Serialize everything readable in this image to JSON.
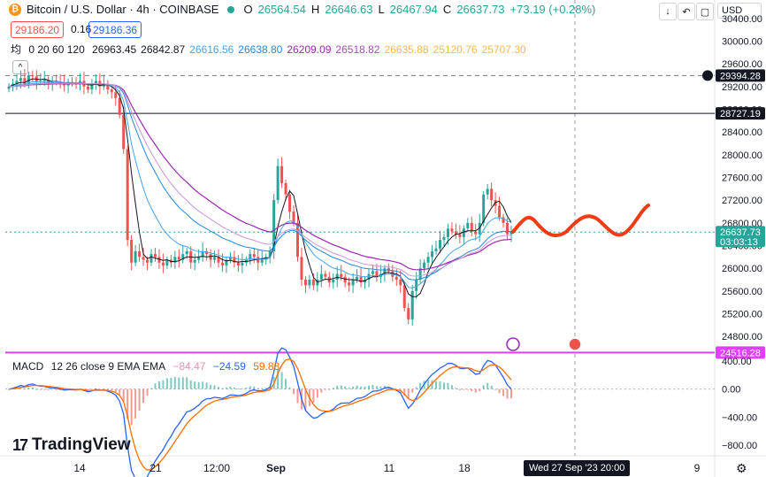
{
  "header": {
    "coin_symbol": "₿",
    "title": "Bitcoin / U.S. Dollar · 4h · COINBASE",
    "open_label": "O",
    "open": "26564.54",
    "high_label": "H",
    "high": "26646.63",
    "low_label": "L",
    "low": "26467.94",
    "close_label": "C",
    "close": "26637.73",
    "change": "+73.19 (+0.28%)"
  },
  "trade": {
    "sell": "29186.20",
    "spread": "0.16",
    "buy": "29186.36"
  },
  "ma_legend": {
    "label": "均",
    "params": "0 20 60 120",
    "values": [
      {
        "text": "26963.45",
        "color": "#131722"
      },
      {
        "text": "26842.87",
        "color": "#131722"
      },
      {
        "text": "26616.56",
        "color": "#42a5f5"
      },
      {
        "text": "26638.80",
        "color": "#1e88e5"
      },
      {
        "text": "26209.09",
        "color": "#9c27b0"
      },
      {
        "text": "26518.82",
        "color": "#ab47bc"
      },
      {
        "text": "26635.88",
        "color": "#ffb74d"
      },
      {
        "text": "25120.76",
        "color": "#ffb74d"
      },
      {
        "text": "25707.30",
        "color": "#ffb74d"
      }
    ]
  },
  "toolbar": {
    "down_icon": "↓",
    "undo_icon": "↶",
    "box_icon": "▢",
    "currency": "USD",
    "collapse_icon": "^"
  },
  "price_axis": {
    "ticks": [
      "30400.00",
      "30000.00",
      "29600.00",
      "29200.00",
      "28800.00",
      "28400.00",
      "28000.00",
      "27600.00",
      "27200.00",
      "26800.00",
      "26400.00",
      "26000.00",
      "25600.00",
      "25200.00",
      "24800.00"
    ],
    "tick_values": [
      30400,
      30000,
      29600,
      29200,
      28800,
      28400,
      28000,
      27600,
      27200,
      26800,
      26400,
      26000,
      25600,
      25200,
      24800
    ],
    "labels": [
      {
        "text": "29394.28",
        "value": 29394.28,
        "bg": "#131722",
        "color": "#ffffff"
      },
      {
        "text": "28727.19",
        "value": 28727.19,
        "bg": "#131722",
        "color": "#ffffff"
      },
      {
        "text": "26637.73",
        "value": 26637.73,
        "bg": "#26a69a",
        "color": "#ffffff",
        "sub": "03:03:13"
      },
      {
        "text": "24516.28",
        "value": 24516.28,
        "bg": "#e040fb",
        "color": "#ffffff"
      }
    ]
  },
  "macd": {
    "label": "MACD",
    "params": "12 26 close 9 EMA EMA",
    "hist_value": "−84.47",
    "macd_value": "−24.59",
    "signal_value": "59.88",
    "hist_color": "#f8bbd0",
    "macd_color": "#2962ff",
    "signal_color": "#ff6d00",
    "ticks": [
      "400.00",
      "0.00",
      "−400.00",
      "−800.00"
    ],
    "tick_values": [
      400,
      0,
      -400,
      -800
    ]
  },
  "time_axis": {
    "labels": [
      "14",
      "21",
      "12:00",
      "Sep",
      "11",
      "18",
      "9"
    ],
    "crosshair": "Wed 27 Sep '23  20:00"
  },
  "brand": {
    "mark": "17",
    "name": "TradingView"
  },
  "chart_data": {
    "type": "candlestick",
    "symbol": "BTCUSD",
    "interval": "4h",
    "ylim": [
      24600,
      30600
    ],
    "horizontal_lines": [
      29394.28,
      28727.19,
      24516.28
    ],
    "closes": [
      29200,
      29250,
      29300,
      29350,
      29250,
      29400,
      29380,
      29280,
      29300,
      29320,
      29260,
      29300,
      29280,
      29250,
      29220,
      29280,
      29260,
      29240,
      29300,
      29200,
      29150,
      29250,
      29300,
      29200,
      29250,
      29150,
      29100,
      29000,
      28700,
      28100,
      26500,
      26100,
      26300,
      26200,
      26150,
      26100,
      26250,
      26200,
      26100,
      26050,
      26150,
      26100,
      26200,
      26150,
      26250,
      26300,
      26100,
      26150,
      26200,
      26300,
      26250,
      26150,
      26200,
      26100,
      26050,
      26150,
      26200,
      26100,
      26050,
      26100,
      26150,
      26250,
      26200,
      26100,
      26150,
      26200,
      26300,
      27200,
      27800,
      27500,
      27300,
      27000,
      26800,
      26200,
      25800,
      25700,
      25800,
      25700,
      25800,
      25900,
      25850,
      25750,
      25800,
      25900,
      25850,
      25750,
      25700,
      25800,
      25850,
      25750,
      25800,
      25900,
      25950,
      25850,
      25900,
      26000,
      25950,
      25850,
      25800,
      25700,
      25300,
      25100,
      25600,
      25800,
      26000,
      26100,
      26200,
      26300,
      26350,
      26500,
      26550,
      26700,
      26650,
      26600,
      26550,
      26700,
      26800,
      26650,
      26600,
      26800,
      27300,
      27400,
      27200,
      27100,
      26900,
      26800,
      26600,
      26637
    ]
  }
}
